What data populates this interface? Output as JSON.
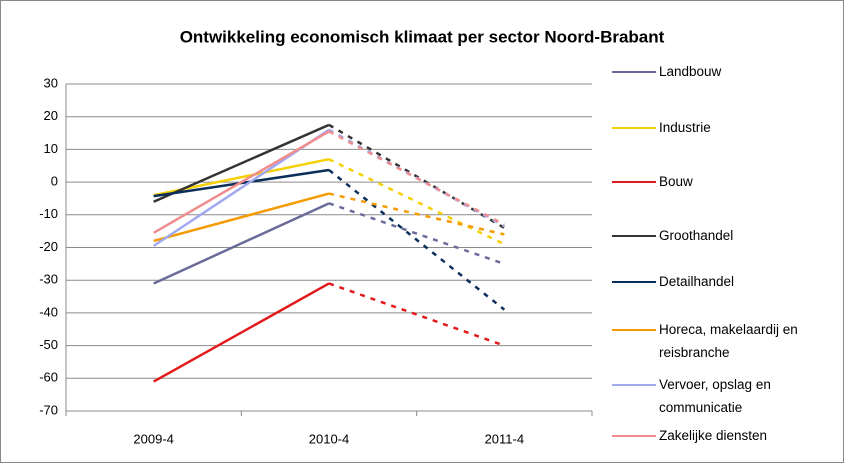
{
  "chart_data": {
    "type": "line",
    "title": "Ontwikkeling economisch klimaat per sector Noord-Brabant",
    "categories": [
      "2009-4",
      "2010-4",
      "2011-4"
    ],
    "series": [
      {
        "name": "Landbouw",
        "color": "#6b6b9a",
        "values": [
          -31,
          -6.5,
          -25
        ]
      },
      {
        "name": "Industrie",
        "color": "#f5d000",
        "values": [
          -4,
          7,
          -19
        ]
      },
      {
        "name": "Bouw",
        "color": "#e31a1c",
        "values": [
          -61,
          -31,
          -50
        ]
      },
      {
        "name": "Groothandel",
        "color": "#333333",
        "values": [
          -6,
          17.5,
          -14
        ]
      },
      {
        "name": "Detailhandel",
        "color": "#0b2f5a",
        "values": [
          -4.3,
          3.7,
          -39
        ]
      },
      {
        "name": "Horeca, makelaardij en reisbranche",
        "color": "#f59b00",
        "values": [
          -18,
          -3.5,
          -16
        ]
      },
      {
        "name": "Vervoer, opslag en communicatie",
        "color": "#a0a8f0",
        "values": [
          -19.5,
          16,
          -13.5
        ]
      },
      {
        "name": "Zakelijke diensten",
        "color": "#f08c8c",
        "values": [
          -15.5,
          15.5,
          -13
        ]
      }
    ],
    "dash_from": 1,
    "ylim": [
      -70,
      30
    ],
    "yticks": [
      -70,
      -60,
      -50,
      -40,
      -30,
      -20,
      -10,
      0,
      10,
      20,
      30
    ],
    "grid": true,
    "legend": "right"
  }
}
